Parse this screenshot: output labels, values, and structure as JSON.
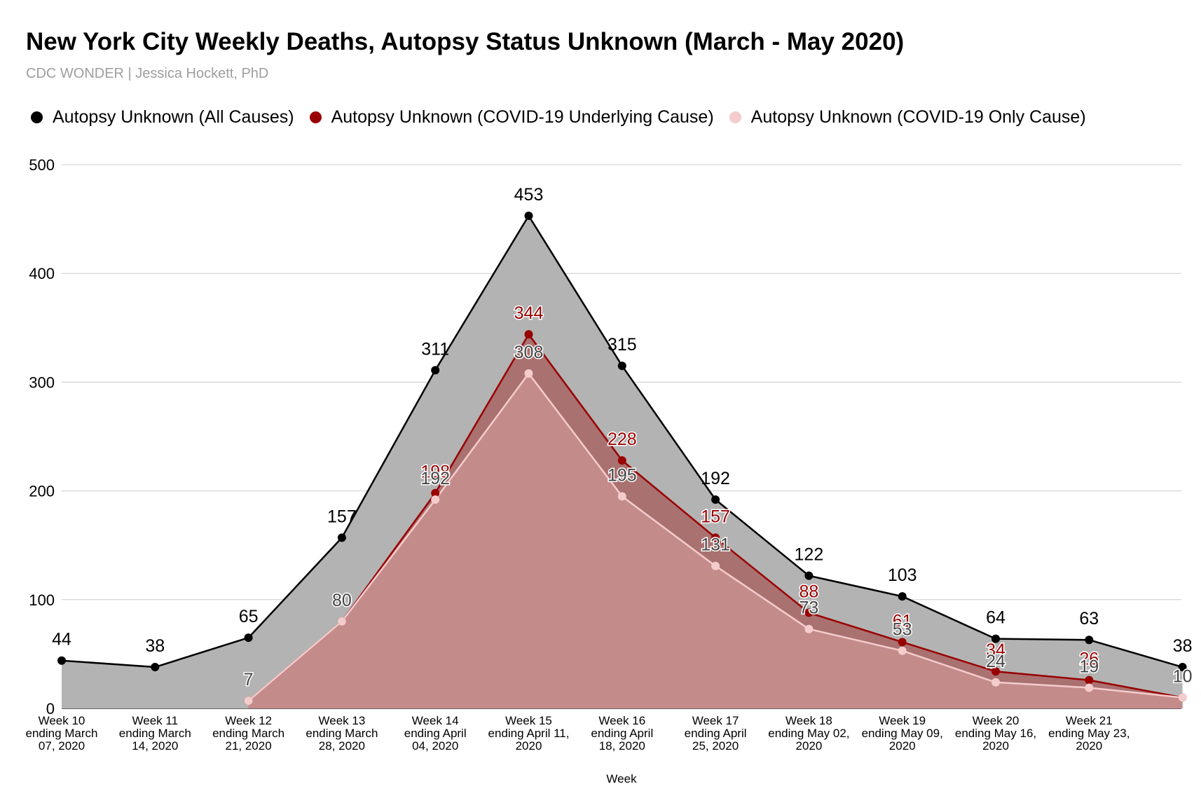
{
  "title": "New York City Weekly Deaths, Autopsy Status Unknown (March - May 2020)",
  "subtitle": "CDC WONDER | Jessica Hockett, PhD",
  "chart_data": {
    "type": "area",
    "title": "New York City Weekly Deaths, Autopsy Status Unknown (March - May 2020)",
    "subtitle": "CDC WONDER | Jessica Hockett, PhD",
    "xlabel": "Week",
    "ylabel": "",
    "ylim": [
      0,
      500
    ],
    "yticks": [
      0,
      100,
      200,
      300,
      400,
      500
    ],
    "grid": true,
    "legend_position": "top",
    "categories": [
      [
        "Week 10",
        "ending March",
        "07, 2020"
      ],
      [
        "Week 11",
        "ending March",
        "14, 2020"
      ],
      [
        "Week 12",
        "ending March",
        "21, 2020"
      ],
      [
        "Week 13",
        "ending March",
        "28, 2020"
      ],
      [
        "Week 14",
        "ending April",
        "04, 2020"
      ],
      [
        "Week 15",
        "ending April 11,",
        "2020"
      ],
      [
        "Week 16",
        "ending April",
        "18, 2020"
      ],
      [
        "Week 17",
        "ending April",
        "25, 2020"
      ],
      [
        "Week 18",
        "ending May 02,",
        "2020"
      ],
      [
        "Week 19",
        "ending May 09,",
        "2020"
      ],
      [
        "Week 20",
        "ending May 16,",
        "2020"
      ],
      [
        "Week 21",
        "ending May 23,",
        "2020"
      ],
      []
    ],
    "series": [
      {
        "name": "Autopsy Unknown (All Causes)",
        "color": "#000000",
        "fill": "#b3b3b3",
        "label_color": "#000000",
        "values": [
          44,
          38,
          65,
          157,
          311,
          453,
          315,
          192,
          122,
          103,
          64,
          63,
          38
        ]
      },
      {
        "name": "Autopsy Unknown (COVID-19 Underlying Cause)",
        "color": "#990000",
        "fill": "#a33a3a",
        "label_color": "#990000",
        "values": [
          null,
          null,
          7,
          80,
          198,
          344,
          228,
          157,
          88,
          61,
          34,
          26,
          10
        ]
      },
      {
        "name": "Autopsy Unknown (COVID-19 Only Cause)",
        "color": "#f4cccc",
        "fill": "#d9a1a1",
        "label_color": "#444444",
        "values": [
          null,
          null,
          7,
          80,
          192,
          308,
          195,
          131,
          73,
          53,
          24,
          19,
          10
        ]
      }
    ]
  }
}
